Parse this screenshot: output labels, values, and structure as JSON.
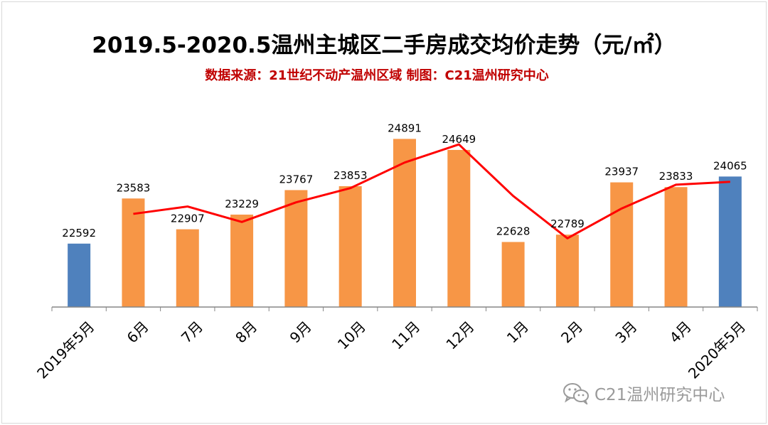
{
  "title": "2019.5-2020.5温州主城区二手房成交均价走势（元/㎡）",
  "subtitle": "数据来源：21世纪不动产温州区域  制图：C21温州研究中心",
  "watermark": "C21温州研究中心",
  "chart_data": {
    "type": "bar",
    "title": "2019.5-2020.5温州主城区二手房成交均价走势（元/㎡）",
    "subtitle": "数据来源：21世纪不动产温州区域  制图：C21温州研究中心",
    "categories": [
      "2019年5月",
      "6月",
      "7月",
      "8月",
      "9月",
      "10月",
      "11月",
      "12月",
      "1月",
      "2月",
      "3月",
      "4月",
      "2020年5月"
    ],
    "values": [
      22592,
      23583,
      22907,
      23229,
      23767,
      23853,
      24891,
      24649,
      22628,
      22789,
      23937,
      23833,
      24065
    ],
    "bar_colors": [
      "#4f81bd",
      "#f79646",
      "#f79646",
      "#f79646",
      "#f79646",
      "#f79646",
      "#f79646",
      "#f79646",
      "#f79646",
      "#f79646",
      "#f79646",
      "#f79646",
      "#4f81bd"
    ],
    "trend_line": {
      "color": "#ff0000",
      "x_categories": [
        "6月",
        "7月",
        "8月",
        "9月",
        "10月",
        "11月",
        "12月",
        "1月",
        "2月",
        "3月",
        "4月",
        "2020年5月"
      ],
      "values": [
        23245,
        23407,
        23068,
        23498,
        23810,
        24372,
        24770,
        23639,
        22709,
        23363,
        23885,
        23949
      ]
    },
    "ylim": [
      21200,
      25600
    ],
    "y_axis_visible": false,
    "grid": false,
    "legend": "none"
  }
}
